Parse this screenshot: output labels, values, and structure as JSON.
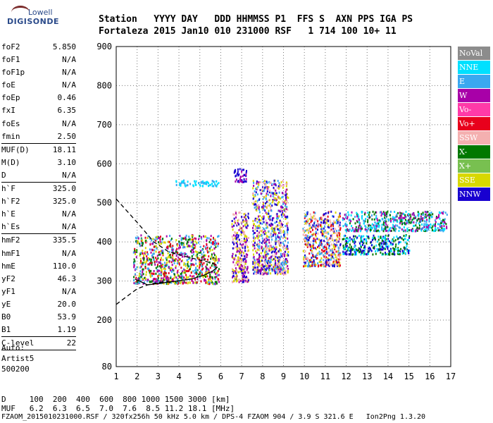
{
  "logo": {
    "line1": "Lowell",
    "line2": "DIGISONDE"
  },
  "header": {
    "labels_line": "Station   YYYY DAY   DDD HHMMSS P1  FFS S  AXN PPS IGA PS",
    "values_line": "Fortaleza 2015 Jan10 010 231000 RSF   1 714 100 10+ 11"
  },
  "params": [
    {
      "name": "foF2",
      "value": "5.850"
    },
    {
      "name": "foF1",
      "value": "N/A"
    },
    {
      "name": "foF1p",
      "value": "N/A"
    },
    {
      "name": "foE",
      "value": "N/A"
    },
    {
      "name": "foEp",
      "value": "0.46"
    },
    {
      "name": "fxI",
      "value": "6.35"
    },
    {
      "name": "foEs",
      "value": "N/A"
    },
    {
      "name": "fmin",
      "value": "2.50"
    },
    {
      "sep": true
    },
    {
      "name": "MUF(D)",
      "value": "18.11"
    },
    {
      "name": "M(D)",
      "value": "3.10"
    },
    {
      "name": "D",
      "value": "N/A"
    },
    {
      "sep": true
    },
    {
      "name": "h`F",
      "value": "325.0"
    },
    {
      "name": "h`F2",
      "value": "325.0"
    },
    {
      "name": "h`E",
      "value": "N/A"
    },
    {
      "name": "h`Es",
      "value": "N/A"
    },
    {
      "sep": true
    },
    {
      "name": "hmF2",
      "value": "335.5"
    },
    {
      "name": "hmF1",
      "value": "N/A"
    },
    {
      "name": "hmE",
      "value": "110.0"
    },
    {
      "name": "yF2",
      "value": "46.3"
    },
    {
      "name": "yF1",
      "value": "N/A"
    },
    {
      "name": "yE",
      "value": "20.0"
    },
    {
      "name": "B0",
      "value": "53.9"
    },
    {
      "name": "B1",
      "value": "1.19"
    },
    {
      "sep": true
    },
    {
      "name": "C-level",
      "value": "22"
    },
    {
      "sep": true
    }
  ],
  "auto": {
    "line1": "Auto:",
    "line2": "Artist5",
    "line3": "500200"
  },
  "legend": [
    {
      "label": "NoVal",
      "color": "#8c8c8c"
    },
    {
      "label": "NNE",
      "color": "#00e0ff"
    },
    {
      "label": "E",
      "color": "#3aa8f0"
    },
    {
      "label": "W",
      "color": "#a800a8"
    },
    {
      "label": "Vo-",
      "color": "#ff3aa8"
    },
    {
      "label": "Vo+",
      "color": "#e8001c"
    },
    {
      "label": "SSW",
      "color": "#f4b0b0"
    },
    {
      "label": "X-",
      "color": "#007800"
    },
    {
      "label": "X+",
      "color": "#78c050"
    },
    {
      "label": "SSE",
      "color": "#d8d800"
    },
    {
      "label": "NNW",
      "color": "#1800d0"
    }
  ],
  "footer": {
    "d_line": "D     100  200  400  600  800 1000 1500 3000 [km]",
    "muf_line": "MUF   6.2  6.3  6.5  7.0  7.6  8.5 11.2 18.1 [MHz]",
    "file_line": "FZAOM_2015010231000.RSF / 320fx256h 50 kHz 5.0 km / DPS-4 FZAOM 904 / 3.9 S 321.6 E   Ion2Png 1.3.20"
  },
  "chart_data": {
    "type": "scatter",
    "x_ticks": [
      1,
      2,
      3,
      4,
      5,
      6,
      7,
      8,
      9,
      10,
      11,
      12,
      13,
      14,
      15,
      16,
      17
    ],
    "y_ticks": [
      80,
      200,
      300,
      400,
      500,
      600,
      700,
      800,
      900
    ],
    "xlim": [
      1,
      17
    ],
    "ylim": [
      80,
      900
    ],
    "grid": true,
    "echo_clusters": [
      {
        "x": [
          1.8,
          5.9
        ],
        "y": [
          295,
          420
        ],
        "colors": [
          "#d8d800",
          "#3aa8f0",
          "#e8001c",
          "#007800",
          "#a800a8"
        ]
      },
      {
        "x": [
          3.8,
          5.9
        ],
        "y": [
          545,
          560
        ],
        "colors": [
          "#3aa8f0",
          "#00e0ff"
        ]
      },
      {
        "x": [
          6.6,
          7.2
        ],
        "y": [
          555,
          590
        ],
        "colors": [
          "#1800d0",
          "#a800a8"
        ]
      },
      {
        "x": [
          6.5,
          7.3
        ],
        "y": [
          300,
          480
        ],
        "colors": [
          "#a800a8",
          "#d8d800",
          "#1800d0",
          "#f4b0b0"
        ]
      },
      {
        "x": [
          7.5,
          9.2
        ],
        "y": [
          320,
          560
        ],
        "colors": [
          "#1800d0",
          "#d8d800",
          "#3aa8f0",
          "#a800a8",
          "#f4b0b0"
        ]
      },
      {
        "x": [
          9.9,
          11.7
        ],
        "y": [
          340,
          480
        ],
        "colors": [
          "#d8d800",
          "#e8001c",
          "#3aa8f0",
          "#1800d0",
          "#f4b0b0"
        ]
      },
      {
        "x": [
          11.8,
          16.8
        ],
        "y": [
          430,
          480
        ],
        "colors": [
          "#3aa8f0",
          "#00e0ff",
          "#007800",
          "#a800a8"
        ]
      },
      {
        "x": [
          11.8,
          15.0
        ],
        "y": [
          370,
          420
        ],
        "colors": [
          "#1800d0",
          "#007800",
          "#00e0ff"
        ]
      }
    ],
    "profile_curve": {
      "x": [
        1.9,
        2.5,
        3.2,
        3.9,
        4.6,
        5.2,
        5.6,
        5.85
      ],
      "y": [
        305,
        290,
        295,
        300,
        305,
        315,
        325,
        336
      ]
    },
    "dashed_curve": {
      "x": [
        1.0,
        1.5,
        2.0,
        2.8,
        3.5,
        4.5,
        5.3,
        5.9
      ],
      "y": [
        510,
        480,
        450,
        400,
        375,
        360,
        350,
        340
      ]
    },
    "dashed_lower": {
      "x": [
        1.0,
        1.5,
        2.0,
        2.5,
        3.0,
        3.5
      ],
      "y": [
        240,
        260,
        280,
        290,
        296,
        300
      ]
    }
  }
}
